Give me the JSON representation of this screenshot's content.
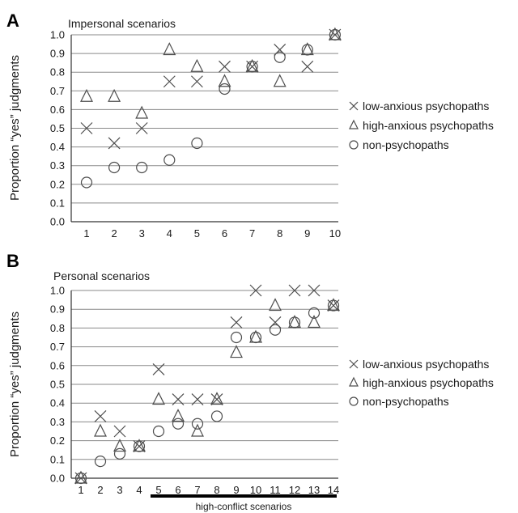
{
  "chart_data": [
    {
      "type": "scatter",
      "panel_label": "A",
      "title": "Impersonal scenarios",
      "ylabel": "Proportion “yes” judgments",
      "xlabel": "",
      "ylim": [
        0.0,
        1.0
      ],
      "yticks": [
        "0.0",
        "0.1",
        "0.2",
        "0.3",
        "0.4",
        "0.5",
        "0.6",
        "0.7",
        "0.8",
        "0.9",
        "1.0"
      ],
      "categories": [
        "1",
        "2",
        "3",
        "4",
        "5",
        "6",
        "7",
        "8",
        "9",
        "10"
      ],
      "grid": true,
      "legend_position": "right",
      "series": [
        {
          "name": "low-anxious psychopaths",
          "marker": "x",
          "values": [
            0.5,
            0.42,
            0.5,
            0.75,
            0.75,
            0.83,
            0.83,
            0.92,
            0.83,
            1.0
          ]
        },
        {
          "name": "high-anxious psychopaths",
          "marker": "triangle",
          "values": [
            0.67,
            0.67,
            0.58,
            0.92,
            0.83,
            0.75,
            0.83,
            0.75,
            0.92,
            1.0
          ]
        },
        {
          "name": "non-psychopaths",
          "marker": "circle",
          "values": [
            0.21,
            0.29,
            0.29,
            0.33,
            0.42,
            0.71,
            0.83,
            0.88,
            0.92,
            1.0
          ]
        }
      ]
    },
    {
      "type": "scatter",
      "panel_label": "B",
      "title": "Personal scenarios",
      "ylabel": "Proportion “yes” judgments",
      "xlabel": "",
      "ylim": [
        0.0,
        1.0
      ],
      "yticks": [
        "0.0",
        "0.1",
        "0.2",
        "0.3",
        "0.4",
        "0.5",
        "0.6",
        "0.7",
        "0.8",
        "0.9",
        "1.0"
      ],
      "categories": [
        "1",
        "2",
        "3",
        "4",
        "5",
        "6",
        "7",
        "8",
        "9",
        "10",
        "11",
        "12",
        "13",
        "14"
      ],
      "grid": true,
      "legend_position": "right",
      "annotation": {
        "text": "high-conflict scenarios",
        "from": "5",
        "to": "14"
      },
      "series": [
        {
          "name": "low-anxious psychopaths",
          "marker": "x",
          "values": [
            0.0,
            0.33,
            0.25,
            0.17,
            0.58,
            0.42,
            0.42,
            0.42,
            0.83,
            1.0,
            0.83,
            1.0,
            1.0,
            0.92
          ]
        },
        {
          "name": "high-anxious psychopaths",
          "marker": "triangle",
          "values": [
            0.0,
            0.25,
            0.17,
            0.17,
            0.42,
            0.33,
            0.25,
            0.42,
            0.67,
            0.75,
            0.92,
            0.83,
            0.83,
            0.92
          ]
        },
        {
          "name": "non-psychopaths",
          "marker": "circle",
          "values": [
            0.0,
            0.09,
            0.13,
            0.17,
            0.25,
            0.29,
            0.29,
            0.33,
            0.75,
            0.75,
            0.79,
            0.83,
            0.88,
            0.92
          ]
        }
      ]
    }
  ]
}
